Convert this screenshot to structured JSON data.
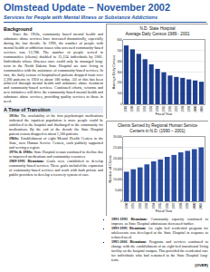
{
  "header": {
    "title": "Olmstead Update – November 2002",
    "subtitle": "Services for People with Mental Illness or Substance Addictions"
  },
  "background": {
    "heading": "Background",
    "text": "Since the 1950s, community based mental health and substance abuse services have increased dramatically, especially during the last decade. In 1990, the number of people with mental health or addiction issues who accessed community-based services was 13,788. The number of people served in communities (clients) doubled to 25,124 individuals by 2001. Individuals whose illnesses once could only be managed long-term in the North Dakota State Hospital are now living in communities with the assistance of community-based services. In fact, the daily census of hospitalized patients dropped from over 2,200 patients in 1950 to about 180 today. All of this has been achieved through mental health and substance abuse treatment and community-based services. Continued efforts, reforms and new initiatives will drive the community-based mental health and substance abuse services, providing quality services to those in need."
  },
  "transition": {
    "heading": "A Time of Transition",
    "items": [
      {
        "label": "1950s:",
        "text": "The availability of the first psychotropic medications indicated the inpatient population is more people could be stabilized in the hospital and discharged to the community for medications. By the end of the decade the State Hospital patient census dropped to about 1,500 patients."
      },
      {
        "label": "1960s:",
        "text": "Establishment of eight Mental Health Centers in the State, now Human Service Centers, each publicly supported and serving a region."
      },
      {
        "label": "1970s & 1980s:",
        "text": "State Hospital census continued to decline due to improved medications and community resources."
      },
      {
        "label": "1989-1991 Biennium:",
        "text": "Goals were established to develop community-based services. These goals included the expansion of community-based services and work with both private and public providers to develop a recovery system of care."
      }
    ]
  },
  "continued": [
    {
      "label": "1991-1993 Biennium:",
      "text": "Community capacity continued to improve as State Hospital admissions decreased further."
    },
    {
      "label": "1993-1995 Biennium:",
      "text": "An eight bed residential program for adolescents was developed at the State Hospital in response to reduced need."
    },
    {
      "label": "1995-2001 Biennium:",
      "text": "Programs and services continued to change with the establishment of an eight bed transitional living facility on the hospital campus. This provided the residential care for individuals who had remained in the State Hospital long-term."
    }
  ],
  "over": "(OVER)",
  "chart_data": [
    {
      "type": "bar",
      "title": [
        "N.D. State Hospital",
        "Average Daily Census 1989 - 2001"
      ],
      "x_label": "Fiscal Year",
      "y_label": "Average Daily Census",
      "categories": [
        "1989",
        "1990",
        "1991",
        "1992",
        "1993",
        "1994",
        "1995",
        "1996",
        "1997",
        "1998",
        "1999",
        "2000",
        "2001"
      ],
      "values": [
        548,
        512,
        470,
        420,
        372,
        330,
        298,
        268,
        255,
        246,
        232,
        222,
        210
      ],
      "color": "#1f3f8f",
      "ylim": [
        0,
        600
      ],
      "yticks": [
        0,
        100,
        200,
        300,
        400,
        500,
        600
      ],
      "grid": true
    },
    {
      "type": "bar",
      "title": [
        "Clients Served by Regional Human Service",
        "Centers in N.D. (1990 – 2001)"
      ],
      "x_label": "Fiscal Year",
      "y_label": "Number of Clients",
      "categories": [
        "1990",
        "1991",
        "1992",
        "1993",
        "1994",
        "1995",
        "1996",
        "1997",
        "1998",
        "1999",
        "2000",
        "2001"
      ],
      "values": [
        13788,
        14900,
        15800,
        17200,
        18600,
        19500,
        20700,
        21600,
        22800,
        23500,
        24300,
        25124
      ],
      "color": "#2b4da0",
      "ylim": [
        0,
        30000
      ],
      "yticks": [
        0,
        {
          "value": 5000,
          "label": "5,000"
        },
        {
          "value": 10000,
          "label": "10,000"
        },
        {
          "value": 15000,
          "label": "15,000"
        },
        {
          "value": 20000,
          "label": "20,000"
        },
        {
          "value": 25000,
          "label": "25,000"
        },
        {
          "value": 30000,
          "label": "30,000"
        }
      ],
      "grid": true
    }
  ]
}
